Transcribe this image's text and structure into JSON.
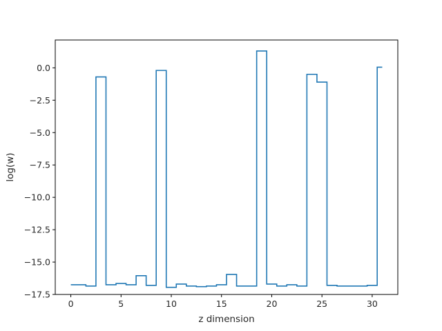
{
  "chart_data": {
    "type": "line",
    "drawstyle": "steps-mid",
    "title": "",
    "xlabel": "z dimension",
    "ylabel": "log(w)",
    "xlim": [
      -1.55,
      32.55
    ],
    "ylim": [
      -17.5,
      2.15
    ],
    "xticks": [
      0,
      5,
      10,
      15,
      20,
      25,
      30
    ],
    "xtick_labels": [
      "0",
      "5",
      "10",
      "15",
      "20",
      "25",
      "30"
    ],
    "yticks": [
      0.0,
      -2.5,
      -5.0,
      -7.5,
      -10.0,
      -12.5,
      -15.0,
      -17.5
    ],
    "ytick_labels": [
      "0.0",
      "−2.5",
      "−5.0",
      "−7.5",
      "−10.0",
      "−12.5",
      "−15.0",
      "−17.5"
    ],
    "grid": false,
    "legend": "none",
    "series": [
      {
        "color": "#1f77b4",
        "x": [
          0,
          1,
          2,
          3,
          4,
          5,
          6,
          7,
          8,
          9,
          10,
          11,
          12,
          13,
          14,
          15,
          16,
          17,
          18,
          19,
          20,
          21,
          22,
          23,
          24,
          25,
          26,
          27,
          28,
          29,
          30,
          31
        ],
        "values": [
          -16.75,
          -16.75,
          -16.85,
          -0.7,
          -16.75,
          -16.65,
          -16.75,
          -16.05,
          -16.8,
          -0.2,
          -16.95,
          -16.7,
          -16.85,
          -16.9,
          -16.85,
          -16.75,
          -15.95,
          -16.85,
          -16.85,
          1.3,
          -16.7,
          -16.85,
          -16.75,
          -16.85,
          -0.5,
          -1.1,
          -16.8,
          -16.85,
          -16.85,
          -16.85,
          -16.8,
          0.05
        ]
      }
    ]
  }
}
